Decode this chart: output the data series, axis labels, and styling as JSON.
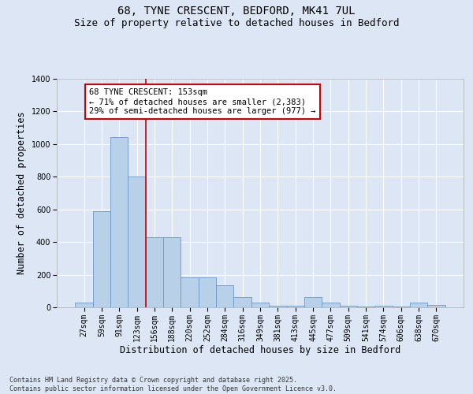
{
  "title_line1": "68, TYNE CRESCENT, BEDFORD, MK41 7UL",
  "title_line2": "Size of property relative to detached houses in Bedford",
  "xlabel": "Distribution of detached houses by size in Bedford",
  "ylabel": "Number of detached properties",
  "categories": [
    "27sqm",
    "59sqm",
    "91sqm",
    "123sqm",
    "156sqm",
    "188sqm",
    "220sqm",
    "252sqm",
    "284sqm",
    "316sqm",
    "349sqm",
    "381sqm",
    "413sqm",
    "445sqm",
    "477sqm",
    "509sqm",
    "541sqm",
    "574sqm",
    "606sqm",
    "638sqm",
    "670sqm"
  ],
  "values": [
    30,
    590,
    1045,
    800,
    430,
    430,
    185,
    185,
    135,
    65,
    30,
    10,
    10,
    65,
    30,
    10,
    5,
    10,
    5,
    30,
    15
  ],
  "bar_color": "#b8d0e8",
  "bar_edge_color": "#6699cc",
  "vline_x": 3.5,
  "vline_color": "#cc0000",
  "annotation_text": "68 TYNE CRESCENT: 153sqm\n← 71% of detached houses are smaller (2,383)\n29% of semi-detached houses are larger (977) →",
  "annotation_box_facecolor": "#ffffff",
  "annotation_box_edgecolor": "#cc0000",
  "annotation_text_color": "#000000",
  "ylim": [
    0,
    1400
  ],
  "yticks": [
    0,
    200,
    400,
    600,
    800,
    1000,
    1200,
    1400
  ],
  "bg_color": "#dce6f5",
  "plot_bg_color": "#dce6f5",
  "grid_color": "#ffffff",
  "footnote": "Contains HM Land Registry data © Crown copyright and database right 2025.\nContains public sector information licensed under the Open Government Licence v3.0.",
  "title_fontsize": 10,
  "subtitle_fontsize": 9,
  "axis_label_fontsize": 8.5,
  "tick_fontsize": 7,
  "annot_fontsize": 7.5,
  "footnote_fontsize": 6
}
